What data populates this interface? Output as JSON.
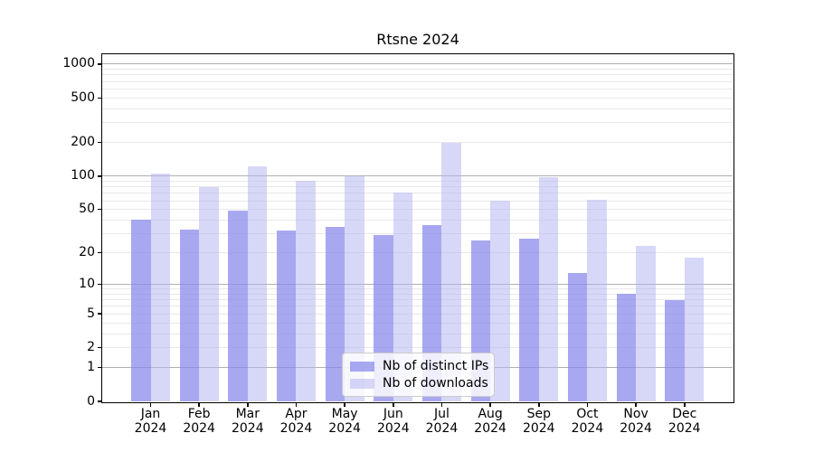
{
  "title": "Rtsne 2024",
  "colors": {
    "ips_bar": "rgba(134,134,236,0.72)",
    "downloads_bar": "rgba(178,178,240,0.52)",
    "major_grid": "#b0b0b0",
    "minor_grid": "#e8e8e8",
    "axis": "#000000",
    "legend_border": "#cccccc",
    "text": "#000000"
  },
  "legend": {
    "items": [
      {
        "label": "Nb of distinct IPs",
        "swatch": "ips"
      },
      {
        "label": "Nb of downloads",
        "swatch": "downloads"
      }
    ],
    "position": "lower center"
  },
  "chart_data": {
    "type": "bar",
    "title": "Rtsne 2024",
    "categories": [
      "Jan 2024",
      "Feb 2024",
      "Mar 2024",
      "Apr 2024",
      "May 2024",
      "Jun 2024",
      "Jul 2024",
      "Aug 2024",
      "Sep 2024",
      "Oct 2024",
      "Nov 2024",
      "Dec 2024"
    ],
    "series": [
      {
        "name": "Nb of distinct IPs",
        "values": [
          40,
          33,
          49,
          32,
          35,
          29,
          36,
          26,
          27,
          13,
          8,
          7
        ]
      },
      {
        "name": "Nb of downloads",
        "values": [
          105,
          80,
          123,
          90,
          100,
          71,
          200,
          60,
          98,
          61,
          23,
          18
        ]
      }
    ],
    "xlabel": "",
    "ylabel": "",
    "yscale": "log1p",
    "yticks": [
      0,
      1,
      2,
      5,
      10,
      20,
      50,
      100,
      200,
      500,
      1000
    ],
    "ylim": [
      0,
      1250
    ],
    "grid": {
      "major_at": [
        1,
        10,
        100,
        1000
      ],
      "minor_at": "2-9 within each decade"
    },
    "legend_position": "lower center"
  }
}
